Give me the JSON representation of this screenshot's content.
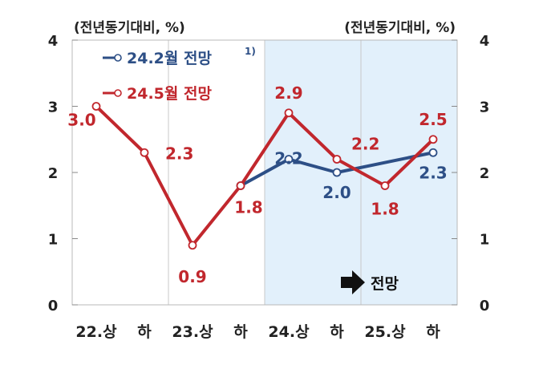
{
  "chart_data": {
    "type": "line",
    "unit_left": "(전년동기대비, %)",
    "unit_right": "(전년동기대비, %)",
    "categories": [
      "22.상",
      "하",
      "23.상",
      "하",
      "24.상",
      "하",
      "25.상",
      "하"
    ],
    "ylim": [
      0,
      4
    ],
    "yticks": [
      "0",
      "1",
      "2",
      "3",
      "4"
    ],
    "grid": "vertical",
    "forecast_region": {
      "from_category": "24.상",
      "label": "전망"
    },
    "series": [
      {
        "name": "24.2월 전망",
        "superscript": "1)",
        "color": "#2d4f86",
        "x": [
          "23.하",
          "24.상",
          "24.하",
          "25.상",
          "25.하"
        ],
        "values": [
          1.8,
          2.2,
          2.0,
          null,
          2.3
        ],
        "labels": [
          "",
          "2.2",
          "2.0",
          "",
          "2.3"
        ]
      },
      {
        "name": "24.5월 전망",
        "color": "#c1272d",
        "x": [
          "22.상",
          "22.하",
          "23.상",
          "23.하",
          "24.상",
          "24.하",
          "25.상",
          "25.하"
        ],
        "values": [
          3.0,
          2.3,
          0.9,
          1.8,
          2.9,
          2.2,
          1.8,
          2.5
        ],
        "labels": [
          "3.0",
          "2.3",
          "0.9",
          "1.8",
          "2.9",
          "2.2",
          "1.8",
          "2.5"
        ]
      }
    ]
  }
}
